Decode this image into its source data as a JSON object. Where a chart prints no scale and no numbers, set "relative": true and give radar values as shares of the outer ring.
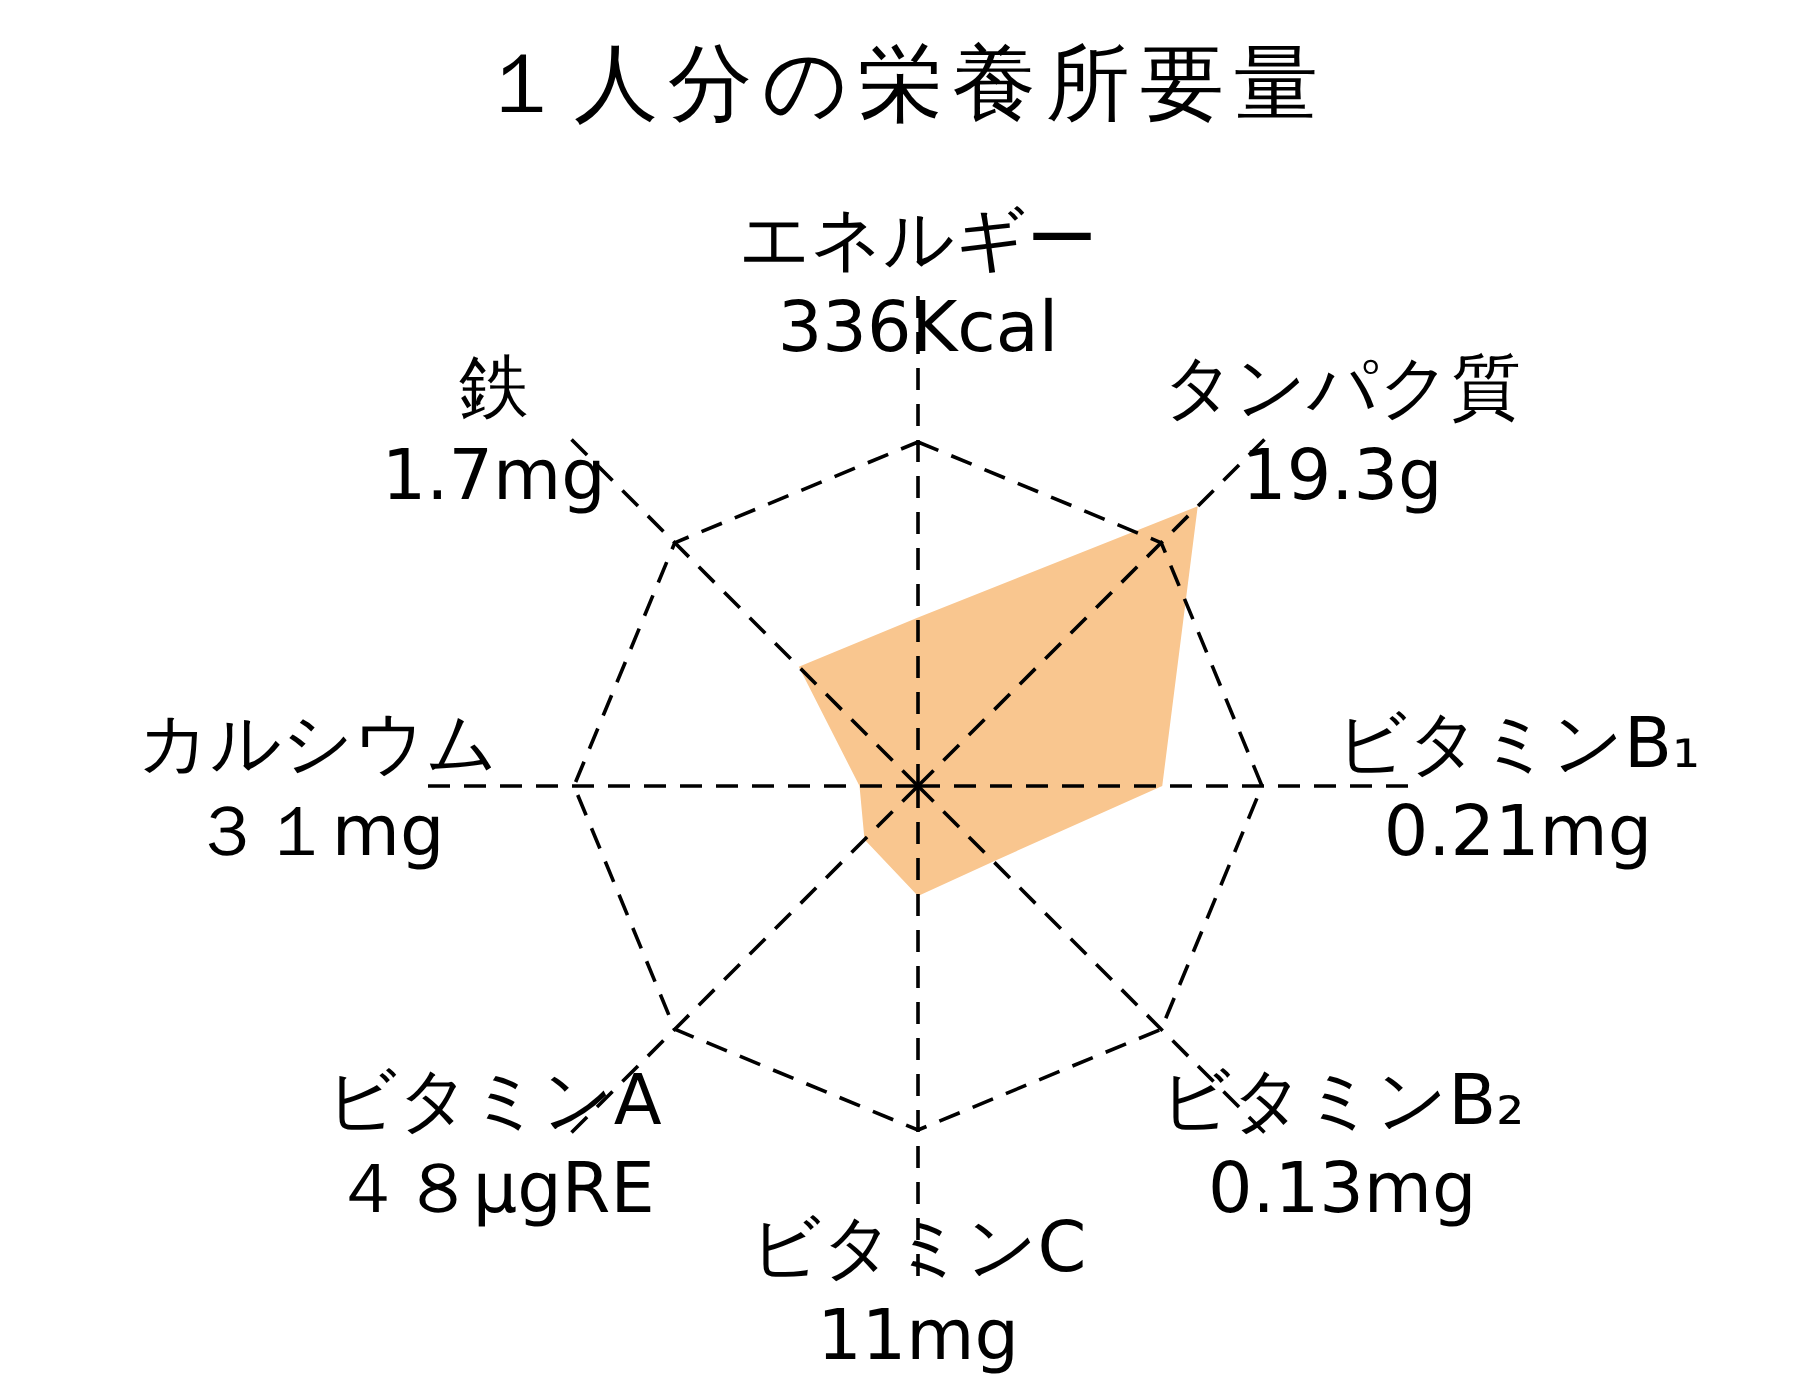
{
  "chart_data": {
    "type": "radar",
    "title": "１人分の栄養所要量",
    "categories": [
      "エネルギー",
      "タンパク質",
      "ビタミンB₁",
      "ビタミンB₂",
      "ビタミンC",
      "ビタミンA",
      "カルシウム",
      "鉄"
    ],
    "annotations": [
      "336Kcal",
      "19.3g",
      "0.21mg",
      "0.13mg",
      "11mg",
      "４８μgRE",
      "３１mg",
      "1.7mg"
    ],
    "relative": true,
    "grid": true,
    "series": [
      {
        "color": "#f9c68f",
        "values": [
          0.49,
          1.15,
          0.71,
          0.31,
          0.32,
          0.22,
          0.17,
          0.49
        ]
      }
    ]
  }
}
